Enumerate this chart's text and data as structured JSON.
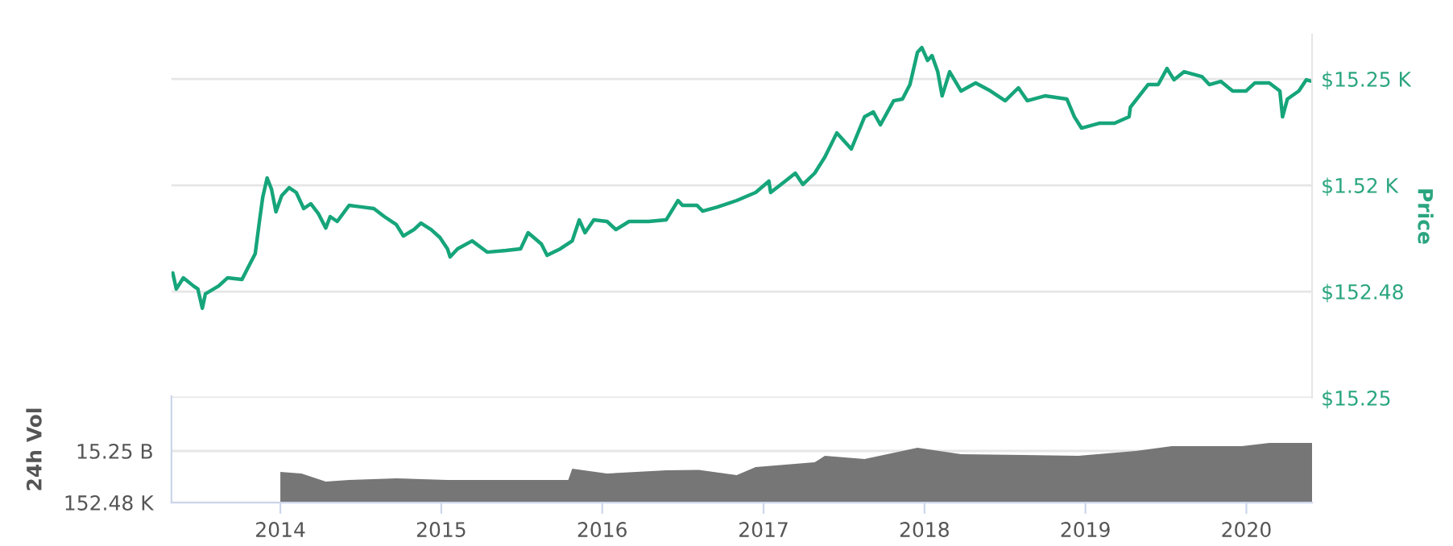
{
  "chart_data": [
    {
      "type": "line",
      "ylabel": "Price",
      "log": "y",
      "grid": "y",
      "tick_labels": "y",
      "xlim": [
        "2013-04-29",
        "2020-05-29"
      ],
      "ylim": [
        15.25,
        40000
      ],
      "yticks": [
        {
          "value": 15.25,
          "label": "$15.25"
        },
        {
          "value": 152.48,
          "label": "$152.48"
        },
        {
          "value": 1524.8,
          "label": "$1.52 K"
        },
        {
          "value": 15248,
          "label": "$15.25 K"
        }
      ],
      "x": [
        "2013-05-02",
        "2013-05-10",
        "2013-05-26",
        "2013-06-18",
        "2013-06-28",
        "2013-07-08",
        "2013-07-15",
        "2013-08-14",
        "2013-09-03",
        "2013-10-06",
        "2013-10-19",
        "2013-11-05",
        "2013-11-15",
        "2013-11-22",
        "2013-12-02",
        "2013-12-12",
        "2013-12-22",
        "2014-01-04",
        "2014-01-21",
        "2014-02-06",
        "2014-02-23",
        "2014-03-11",
        "2014-03-28",
        "2014-04-14",
        "2014-04-24",
        "2014-05-10",
        "2014-06-06",
        "2014-06-29",
        "2014-08-01",
        "2014-08-25",
        "2014-09-21",
        "2014-10-07",
        "2014-10-31",
        "2014-11-16",
        "2014-12-09",
        "2014-12-29",
        "2015-01-15",
        "2015-01-21",
        "2015-02-07",
        "2015-03-12",
        "2015-04-15",
        "2015-05-28",
        "2015-06-30",
        "2015-07-17",
        "2015-08-16",
        "2015-08-29",
        "2015-09-28",
        "2015-10-25",
        "2015-11-10",
        "2015-11-23",
        "2015-12-13",
        "2016-01-12",
        "2016-02-01",
        "2016-03-02",
        "2016-04-15",
        "2016-05-25",
        "2016-06-21",
        "2016-07-01",
        "2016-08-03",
        "2016-08-16",
        "2016-09-18",
        "2016-11-01",
        "2016-12-14",
        "2017-01-13",
        "2017-01-17",
        "2017-02-19",
        "2017-03-14",
        "2017-03-31",
        "2017-04-27",
        "2017-05-20",
        "2017-06-16",
        "2017-07-19",
        "2017-08-18",
        "2017-09-07",
        "2017-09-23",
        "2017-10-23",
        "2017-11-12",
        "2017-11-29",
        "2017-12-16",
        "2017-12-26",
        "2018-01-08",
        "2018-01-18",
        "2018-01-31",
        "2018-02-10",
        "2018-02-27",
        "2018-03-25",
        "2018-04-27",
        "2018-05-31",
        "2018-07-03",
        "2018-08-02",
        "2018-08-22",
        "2018-10-01",
        "2018-11-20",
        "2018-12-07",
        "2018-12-23",
        "2019-02-01",
        "2019-03-08",
        "2019-04-10",
        "2019-04-13",
        "2019-05-23",
        "2019-06-15",
        "2019-07-05",
        "2019-07-21",
        "2019-08-13",
        "2019-09-22",
        "2019-10-09",
        "2019-11-04",
        "2019-12-01",
        "2019-12-31",
        "2020-01-20",
        "2020-02-22",
        "2020-03-17",
        "2020-03-23",
        "2020-04-03",
        "2020-04-29",
        "2020-05-16",
        "2020-05-29"
      ],
      "series": [
        {
          "color": "#16a57a",
          "values": [
            228,
            161,
            205,
            172,
            161,
            106,
            145,
            172,
            205,
            198,
            253,
            346,
            720,
            1173,
            1784,
            1397,
            858,
            1217,
            1447,
            1304,
            920,
            1022,
            828,
            604,
            773,
            696,
            987,
            959,
            920,
            773,
            650,
            508,
            584,
            672,
            584,
            491,
            385,
            323,
            385,
            457,
            358,
            371,
            385,
            545,
            427,
            334,
            385,
            457,
            720,
            545,
            720,
            696,
            584,
            696,
            696,
            720,
            1095,
            987,
            987,
            870,
            950,
            1095,
            1304,
            1666,
            1304,
            1666,
            1982,
            1552,
            1982,
            2810,
            4733,
            3346,
            6716,
            7457,
            5643,
            9520,
            9860,
            13500,
            27120,
            30090,
            22770,
            25300,
            17840,
            10570,
            17840,
            11740,
            13980,
            11740,
            9520,
            12600,
            9520,
            10570,
            9860,
            6716,
            5262,
            5840,
            5840,
            6716,
            8280,
            13500,
            13500,
            19130,
            14980,
            17840,
            16070,
            13500,
            14480,
            11740,
            11740,
            13980,
            13980,
            11740,
            6716,
            9860,
            11740,
            14980,
            14480
          ]
        }
      ]
    },
    {
      "type": "area",
      "ylabel": "24h Vol",
      "log": "y",
      "grid": "y",
      "xlim": [
        "2013-04-29",
        "2020-05-29"
      ],
      "ylim": [
        152480,
        3100000000000000
      ],
      "xticks": [
        {
          "value": "2014-01-01",
          "label": "2014"
        },
        {
          "value": "2015-01-01",
          "label": "2015"
        },
        {
          "value": "2016-01-01",
          "label": "2016"
        },
        {
          "value": "2017-01-01",
          "label": "2017"
        },
        {
          "value": "2018-01-01",
          "label": "2018"
        },
        {
          "value": "2019-01-01",
          "label": "2019"
        },
        {
          "value": "2020-01-01",
          "label": "2020"
        }
      ],
      "yticks": [
        {
          "value": 152480,
          "label": "152.48 K"
        },
        {
          "value": 15248000000,
          "label": "15.25 B"
        }
      ],
      "x": [
        "2014-01-01",
        "2014-02-18",
        "2014-04-14",
        "2014-06-06",
        "2014-09-21",
        "2015-01-15",
        "2015-06-30",
        "2015-10-16",
        "2015-10-25",
        "2016-01-12",
        "2016-05-25",
        "2016-08-07",
        "2016-11-01",
        "2016-12-14",
        "2017-04-27",
        "2017-05-20",
        "2017-08-18",
        "2017-12-16",
        "2018-03-25",
        "2018-12-16",
        "2019-04-25",
        "2019-07-16",
        "2019-12-22",
        "2020-02-22",
        "2020-05-29"
      ],
      "series": [
        {
          "color": "#767676",
          "values": [
            142000000,
            99000000,
            16400000,
            23500000,
            33700000,
            23500000,
            23500000,
            23500000,
            290000000,
            99000000,
            203000000,
            226000000,
            69000000,
            417000000,
            1230000000,
            5180000000,
            2520000000,
            31300000000,
            7430000000,
            5180000000,
            15200000000,
            44900000000,
            44900000000,
            92000000000,
            92000000000
          ]
        }
      ]
    }
  ]
}
